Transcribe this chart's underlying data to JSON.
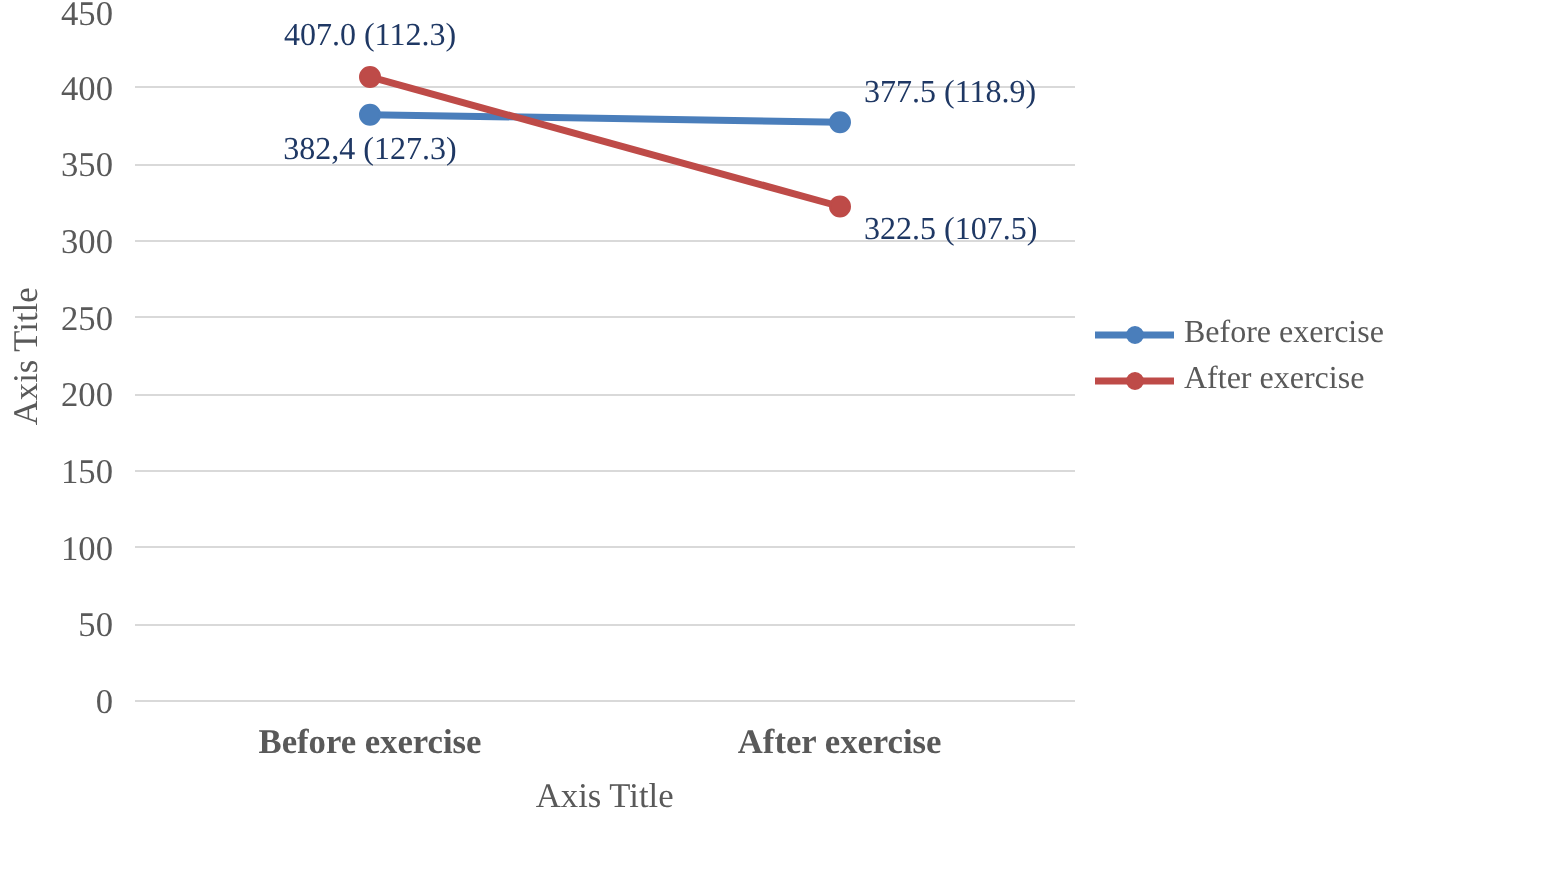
{
  "chart_data": {
    "type": "line",
    "xlabel": "Axis Title",
    "ylabel": "Axis Title",
    "categories": [
      "Before exercise",
      "After exercise"
    ],
    "series": [
      {
        "name": "Before exercise",
        "color": "#4a7ebb",
        "values": [
          382.4,
          377.5
        ],
        "value_labels": [
          "382,4 (127.3)",
          "377.5 (118.9)"
        ]
      },
      {
        "name": "After exercise",
        "color": "#be4b48",
        "values": [
          407.0,
          322.5
        ],
        "value_labels": [
          "407.0 (112.3)",
          "322.5 (107.5)"
        ]
      }
    ],
    "ylim": [
      0,
      450
    ],
    "yticks": [
      0,
      50,
      100,
      150,
      200,
      250,
      300,
      350,
      400,
      450
    ],
    "grid": "y",
    "legend": "right",
    "marker": "circle",
    "line_style": "solid"
  }
}
